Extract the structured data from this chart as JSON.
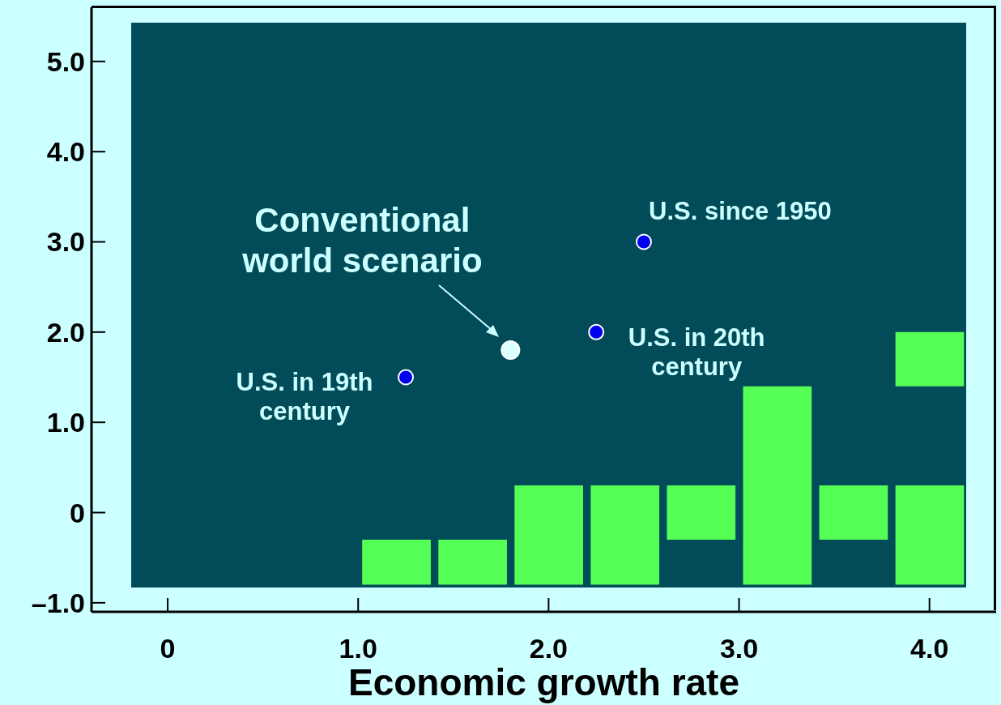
{
  "chart_data": {
    "type": "bar",
    "xlabel": "Economic growth rate",
    "xlim": [
      -0.4,
      4.35
    ],
    "xticks": [
      0,
      {
        "value": 1,
        "label": "1.0"
      },
      {
        "value": 2,
        "label": "2.0"
      },
      {
        "value": 3,
        "label": "3.0"
      },
      {
        "value": 4,
        "label": "4.0"
      }
    ],
    "ylim": [
      -1.1,
      5.6
    ],
    "yticks": [
      {
        "value": -1,
        "label": "–1.0"
      },
      0,
      {
        "value": 1,
        "label": "1.0"
      },
      {
        "value": 2,
        "label": "2.0"
      },
      {
        "value": 3,
        "label": "3.0"
      },
      {
        "value": 4,
        "label": "4.0"
      },
      {
        "value": 5,
        "label": "5.0"
      }
    ],
    "series": [
      {
        "color": "#55ff55",
        "x": [
          1.2,
          1.6,
          2.0,
          2.4,
          2.8,
          3.2,
          3.6,
          4.0
        ],
        "base": [
          -0.8,
          -0.8,
          -0.8,
          -0.8,
          -0.3,
          -0.8,
          -0.3,
          -0.8
        ],
        "values": [
          0.5,
          0.5,
          1.1,
          1.1,
          0.6,
          2.2,
          0.6,
          1.1
        ]
      },
      {
        "color": "#55ff55",
        "x": [
          4.0
        ],
        "base": [
          1.4
        ],
        "values": [
          0.6
        ]
      },
      {
        "type": "scatter",
        "color": "#0000ee",
        "x": [
          1.25,
          2.25,
          2.5
        ],
        "values": [
          1.5,
          2.0,
          3.0
        ]
      },
      {
        "type": "scatter",
        "color": "#ddffff",
        "x": [
          1.8
        ],
        "values": [
          1.8
        ]
      }
    ],
    "marker": "circle",
    "annotations": [
      {
        "text": "Conventional world scenario",
        "x": 1.8,
        "y": 1.8
      },
      {
        "text": "U.S. in 19th century",
        "x": 1.25,
        "y": 1.5
      },
      {
        "text": "U.S. in 20th century",
        "x": 2.25,
        "y": 2.0
      },
      {
        "text": "U.S. since 1950",
        "x": 2.5,
        "y": 3.0
      }
    ]
  }
}
